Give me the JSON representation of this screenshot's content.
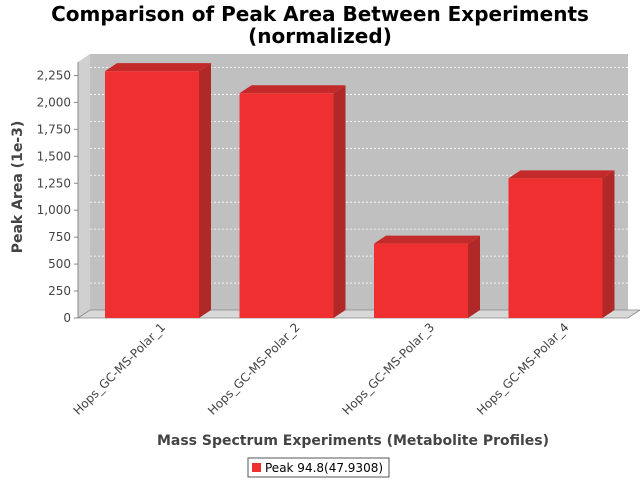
{
  "chart_data": {
    "type": "bar",
    "title_line1": "Comparison of Peak Area Between Experiments",
    "title_line2": "(normalized)",
    "xlabel": "Mass Spectrum Experiments (Metabolite Profiles)",
    "ylabel": "Peak Area (1e-3)",
    "categories": [
      "Hops_GC-MS-Polar_1",
      "Hops_GC-MS-Polar_2",
      "Hops_GC-MS-Polar_3",
      "Hops_GC-MS-Polar_4"
    ],
    "series": [
      {
        "name": "Peak 94.8(47.9308)",
        "values": [
          2290,
          2085,
          690,
          1295
        ],
        "color": "#f03030"
      }
    ],
    "ylim": [
      0,
      2375
    ],
    "yticks": [
      0,
      250,
      500,
      750,
      1000,
      1250,
      1500,
      1750,
      2000,
      2250
    ],
    "ytick_labels": [
      "0",
      "250",
      "500",
      "750",
      "1,000",
      "1,250",
      "1,500",
      "1,750",
      "2,000",
      "2,250"
    ],
    "grid": true,
    "legend_position": "bottom"
  }
}
